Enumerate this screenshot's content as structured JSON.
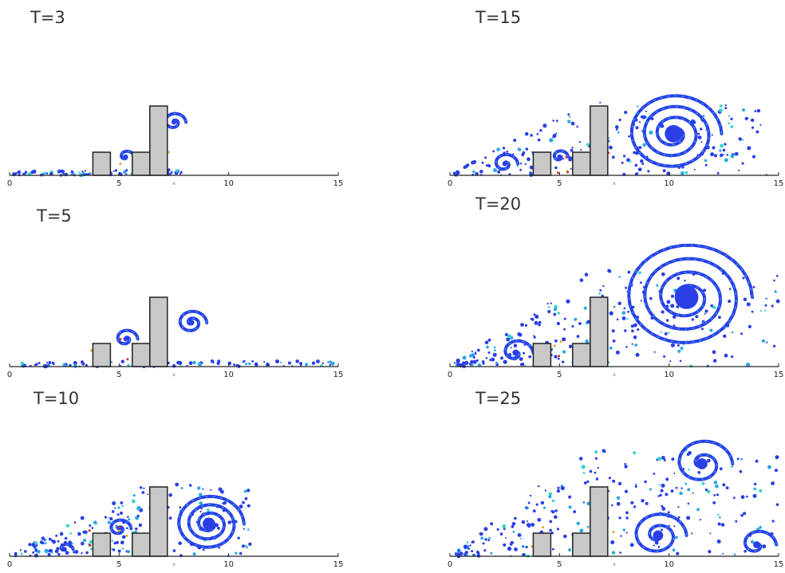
{
  "colors": {
    "flow_primary": "#2a3fe6",
    "flow_secondary": "#29a8e8",
    "flow_tertiary": "#37d6c8",
    "flow_hot": "#d6322a",
    "flow_warm": "#e8a229",
    "obstacle_fill": "#c8c8c8",
    "obstacle_stroke": "#222222",
    "axis": "#222222"
  },
  "chart_data": [
    {
      "type": "diagram",
      "title": "T=3",
      "xlim": [
        0,
        15
      ],
      "xticks": [
        "0",
        "5",
        "10",
        "15"
      ],
      "xlabel": "x",
      "obstacles": [
        {
          "x0": 3.8,
          "x1": 4.6,
          "height": 1.0
        },
        {
          "x0": 5.6,
          "x1": 6.4,
          "height": 1.0
        },
        {
          "x0": 6.4,
          "x1": 7.2,
          "height": 3.0
        }
      ],
      "vortices": [
        {
          "cx": 7.5,
          "cy": 2.3,
          "r": 0.55,
          "turns": 1.3
        },
        {
          "cx": 5.3,
          "cy": 0.8,
          "r": 0.4,
          "turns": 0.8
        }
      ],
      "wake": {
        "x0": 0.2,
        "x1": 8.0,
        "h": 0.1
      }
    },
    {
      "type": "diagram",
      "title": "T=15",
      "xlim": [
        0,
        15
      ],
      "xticks": [
        "0",
        "5",
        "10",
        "15"
      ],
      "xlabel": "x",
      "obstacles": [
        {
          "x0": 3.8,
          "x1": 4.6,
          "height": 1.0
        },
        {
          "x0": 5.6,
          "x1": 6.4,
          "height": 1.0
        },
        {
          "x0": 6.4,
          "x1": 7.2,
          "height": 3.0
        }
      ],
      "vortices": [
        {
          "cx": 10.2,
          "cy": 1.8,
          "r": 2.2,
          "turns": 3.2
        },
        {
          "cx": 2.5,
          "cy": 0.5,
          "r": 0.6,
          "turns": 1.2
        },
        {
          "cx": 5.0,
          "cy": 0.8,
          "r": 0.4,
          "turns": 1.0
        }
      ],
      "wake": {
        "x0": 0.2,
        "x1": 14.5,
        "h": 3.0
      }
    },
    {
      "type": "diagram",
      "title": "T=5",
      "xlim": [
        0,
        15
      ],
      "xticks": [
        "0",
        "5",
        "10",
        "15"
      ],
      "xlabel": "x",
      "obstacles": [
        {
          "x0": 3.8,
          "x1": 4.6,
          "height": 1.0
        },
        {
          "x0": 5.6,
          "x1": 6.4,
          "height": 1.0
        },
        {
          "x0": 6.4,
          "x1": 7.2,
          "height": 3.0
        }
      ],
      "vortices": [
        {
          "cx": 8.3,
          "cy": 1.9,
          "r": 0.7,
          "turns": 1.6
        },
        {
          "cx": 5.3,
          "cy": 1.2,
          "r": 0.55,
          "turns": 1.2
        }
      ],
      "wake": {
        "x0": 0.2,
        "x1": 15.0,
        "h": 0.1
      }
    },
    {
      "type": "diagram",
      "title": "T=20",
      "xlim": [
        0,
        15
      ],
      "xticks": [
        "0",
        "5",
        "10",
        "15"
      ],
      "xlabel": "x",
      "obstacles": [
        {
          "x0": 3.8,
          "x1": 4.6,
          "height": 1.0
        },
        {
          "x0": 5.6,
          "x1": 6.4,
          "height": 1.0
        },
        {
          "x0": 6.4,
          "x1": 7.2,
          "height": 3.0
        }
      ],
      "vortices": [
        {
          "cx": 10.8,
          "cy": 3.0,
          "r": 3.0,
          "turns": 3.5
        },
        {
          "cx": 3.0,
          "cy": 0.6,
          "r": 0.8,
          "turns": 1.0
        }
      ],
      "wake": {
        "x0": 0.2,
        "x1": 15.0,
        "h": 4.0
      }
    },
    {
      "type": "diagram",
      "title": "T=10",
      "xlim": [
        0,
        15
      ],
      "xticks": [
        "0",
        "5",
        "10",
        "15"
      ],
      "xlabel": "x",
      "obstacles": [
        {
          "x0": 3.8,
          "x1": 4.6,
          "height": 1.0
        },
        {
          "x0": 5.6,
          "x1": 6.4,
          "height": 1.0
        },
        {
          "x0": 6.4,
          "x1": 7.2,
          "height": 3.0
        }
      ],
      "vortices": [
        {
          "cx": 9.1,
          "cy": 1.4,
          "r": 1.6,
          "turns": 3.0
        },
        {
          "cx": 5.0,
          "cy": 1.2,
          "r": 0.55,
          "turns": 1.2
        },
        {
          "cx": 2.5,
          "cy": 0.3,
          "r": 0.4,
          "turns": 0.6
        }
      ],
      "wake": {
        "x0": 0.2,
        "x1": 11.0,
        "h": 3.0
      }
    },
    {
      "type": "diagram",
      "title": "T=25",
      "xlim": [
        0,
        15
      ],
      "xticks": [
        "0",
        "5",
        "10",
        "15"
      ],
      "xlabel": "x",
      "obstacles": [
        {
          "x0": 3.8,
          "x1": 4.6,
          "height": 1.0
        },
        {
          "x0": 5.6,
          "x1": 6.4,
          "height": 1.0
        },
        {
          "x0": 6.4,
          "x1": 7.2,
          "height": 3.0
        }
      ],
      "vortices": [
        {
          "cx": 11.5,
          "cy": 4.0,
          "r": 1.4,
          "turns": 1.6
        },
        {
          "cx": 9.5,
          "cy": 0.9,
          "r": 1.3,
          "turns": 1.8
        },
        {
          "cx": 14.0,
          "cy": 0.5,
          "r": 0.9,
          "turns": 1.0
        }
      ],
      "wake": {
        "x0": 0.2,
        "x1": 15.0,
        "h": 4.5
      }
    }
  ]
}
